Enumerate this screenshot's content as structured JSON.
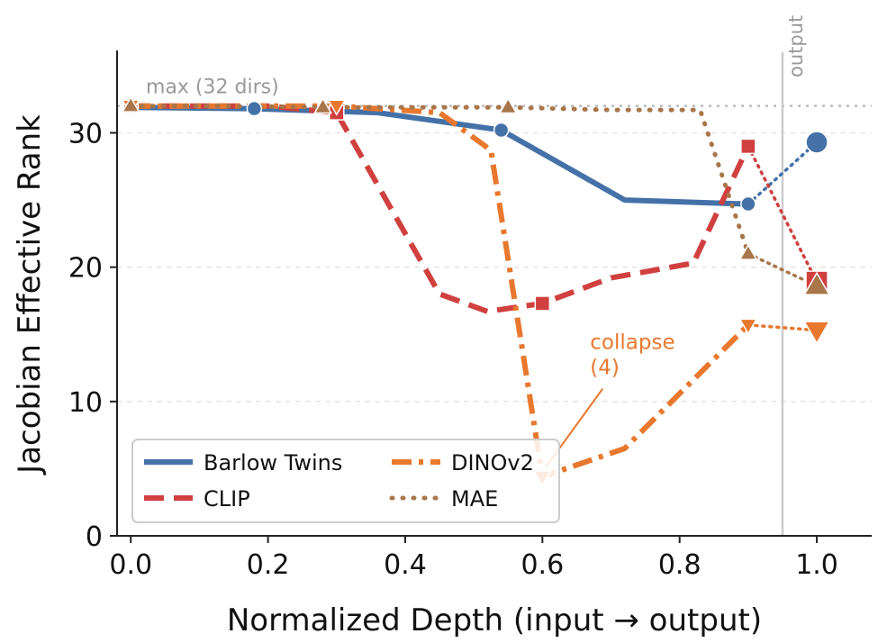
{
  "chart_data": {
    "type": "line",
    "xlabel": "Normalized Depth (input → output)",
    "ylabel": "Jacobian Effective Rank",
    "xlim": [
      -0.02,
      1.08
    ],
    "ylim": [
      0,
      36
    ],
    "x_ticks": [
      0.0,
      0.2,
      0.4,
      0.6,
      0.8,
      1.0
    ],
    "x_tick_labels": [
      "0.0",
      "0.2",
      "0.4",
      "0.6",
      "0.8",
      "1.0"
    ],
    "y_ticks": [
      0,
      10,
      20,
      30
    ],
    "y_tick_labels": [
      "0",
      "10",
      "20",
      "30"
    ],
    "grid": "y-dashed",
    "reference_line": {
      "y": 32,
      "label": "max (32 dirs)",
      "color": "#bbbbbb"
    },
    "output_line": {
      "x": 0.95,
      "label": "output",
      "color": "#cccccc"
    },
    "series": [
      {
        "name": "Barlow Twins",
        "color": "#4471a8",
        "dash": "solid",
        "marker": "circle",
        "x": [
          0.0,
          0.18,
          0.36,
          0.54,
          0.72,
          0.9
        ],
        "y": [
          31.9,
          31.8,
          31.5,
          30.2,
          25.0,
          24.7
        ],
        "marker_idx": [
          0,
          1,
          3,
          5
        ],
        "output": {
          "x": 1.0,
          "y": 29.3
        }
      },
      {
        "name": "CLIP",
        "color": "#d0403f",
        "dash": "dashed",
        "marker": "square",
        "x": [
          0.0,
          0.1,
          0.2,
          0.3,
          0.45,
          0.52,
          0.6,
          0.7,
          0.82,
          0.9
        ],
        "y": [
          32.0,
          32.0,
          32.0,
          31.5,
          18.0,
          16.7,
          17.3,
          19.2,
          20.3,
          29.0
        ],
        "marker_idx": [
          0,
          3,
          6,
          9
        ],
        "output": {
          "x": 1.0,
          "y": 18.9
        }
      },
      {
        "name": "DINOv2",
        "color": "#e8782e",
        "dash": "dashdot",
        "marker": "triangle-down",
        "x": [
          0.0,
          0.15,
          0.3,
          0.45,
          0.525,
          0.6,
          0.72,
          0.9
        ],
        "y": [
          32.0,
          32.0,
          32.0,
          31.5,
          28.7,
          4.4,
          6.5,
          15.7
        ],
        "marker_idx": [
          0,
          2,
          5,
          7
        ],
        "output": {
          "x": 1.0,
          "y": 15.3
        }
      },
      {
        "name": "MAE",
        "color": "#a8764a",
        "dash": "dotted",
        "marker": "triangle-up",
        "x": [
          0.0,
          0.14,
          0.28,
          0.55,
          0.7,
          0.83,
          0.9
        ],
        "y": [
          32.0,
          32.0,
          31.9,
          31.9,
          31.7,
          31.7,
          21.0
        ],
        "marker_idx": [
          0,
          2,
          3,
          6
        ],
        "output": {
          "x": 1.0,
          "y": 18.6
        }
      }
    ],
    "annotation": {
      "text_line1": "collapse",
      "text_line2": "(4)",
      "color": "#e8782e",
      "x": 0.68,
      "y": 13.5,
      "arrow_to_x": 0.6,
      "arrow_to_y": 4.6
    }
  }
}
